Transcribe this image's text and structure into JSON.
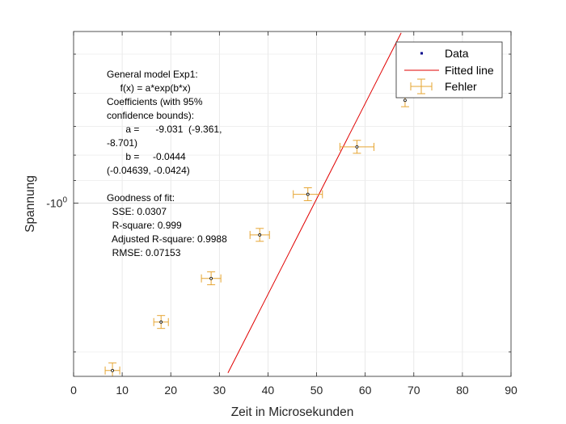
{
  "chart_data": {
    "type": "scatter",
    "xlabel": "Zeit in Microsekunden",
    "ylabel": "Spannung",
    "xlim": [
      0,
      90
    ],
    "ylim": [
      -2.24,
      -0.45
    ],
    "y_scale": "log (negative values)",
    "grid": true,
    "x_ticks": [
      "0",
      "10",
      "20",
      "30",
      "40",
      "50",
      "60",
      "70",
      "80",
      "90"
    ],
    "y_tick_labels": [
      {
        "value": -1,
        "label": "-10^0"
      }
    ],
    "legend": {
      "placement": "top-right",
      "entries": [
        "Data",
        "Fitted line",
        "Fehler"
      ]
    },
    "series": [
      {
        "name": "Data",
        "x": [
          8,
          18,
          28.3,
          38.3,
          48.2,
          58.3,
          68.2,
          78.5
        ],
        "y": [
          -2.18,
          -1.74,
          -1.42,
          -1.16,
          -0.96,
          -0.77,
          -0.62,
          -0.5
        ],
        "x_error": [
          1.5,
          1.5,
          2.0,
          2.0,
          3.0,
          3.5,
          0,
          1.5
        ],
        "y_error_pct": [
          3.5,
          3,
          3,
          3,
          3,
          3,
          3,
          2.5
        ],
        "color": "#00008b",
        "errorbar_color": "#e6a532"
      },
      {
        "name": "Fitted line",
        "model": "-9.031*exp(-0.0444*x)",
        "x_range": [
          8,
          80
        ],
        "color": "#e00000"
      }
    ],
    "annotations": [
      "General model Exp1:",
      "     f(x) = a*exp(b*x)",
      "Coefficients (with 95%",
      "confidence bounds):",
      "       a =      -9.031  (-9.361,",
      "-8.701)",
      "       b =     -0.0444",
      "(-0.04639, -0.0424)",
      "",
      "Goodness of fit:",
      "  SSE: 0.0307",
      "  R-square: 0.999",
      "  Adjusted R-square: 0.9988",
      "  RMSE: 0.07153"
    ]
  }
}
